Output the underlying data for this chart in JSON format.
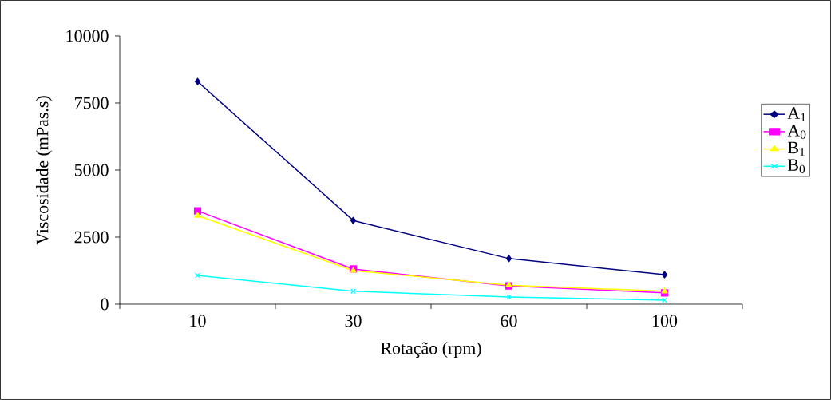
{
  "chart_data": {
    "type": "line",
    "xlabel": "Rotação (rpm)",
    "ylabel": "Viscosidade (mPas.s)",
    "categories": [
      "10",
      "30",
      "60",
      "100"
    ],
    "series": [
      {
        "name": "A$_{1}$",
        "color": "#000080",
        "marker": "diamond",
        "values": [
          8300,
          3120,
          1700,
          1100
        ]
      },
      {
        "name": "A$_{0}$",
        "color": "#ff00ff",
        "marker": "square",
        "values": [
          3480,
          1310,
          680,
          420
        ]
      },
      {
        "name": "B$_{1}$",
        "color": "#ffff00",
        "marker": "triangle",
        "values": [
          3300,
          1250,
          710,
          480
        ]
      },
      {
        "name": "B$_{0}$",
        "color": "#00ffff",
        "marker": "cross",
        "values": [
          1070,
          480,
          270,
          150
        ]
      }
    ],
    "ylim": [
      0,
      10000
    ],
    "yticks": [
      0,
      2500,
      5000,
      7500,
      10000
    ],
    "grid": false,
    "legend": "right",
    "line_style": "solid"
  }
}
